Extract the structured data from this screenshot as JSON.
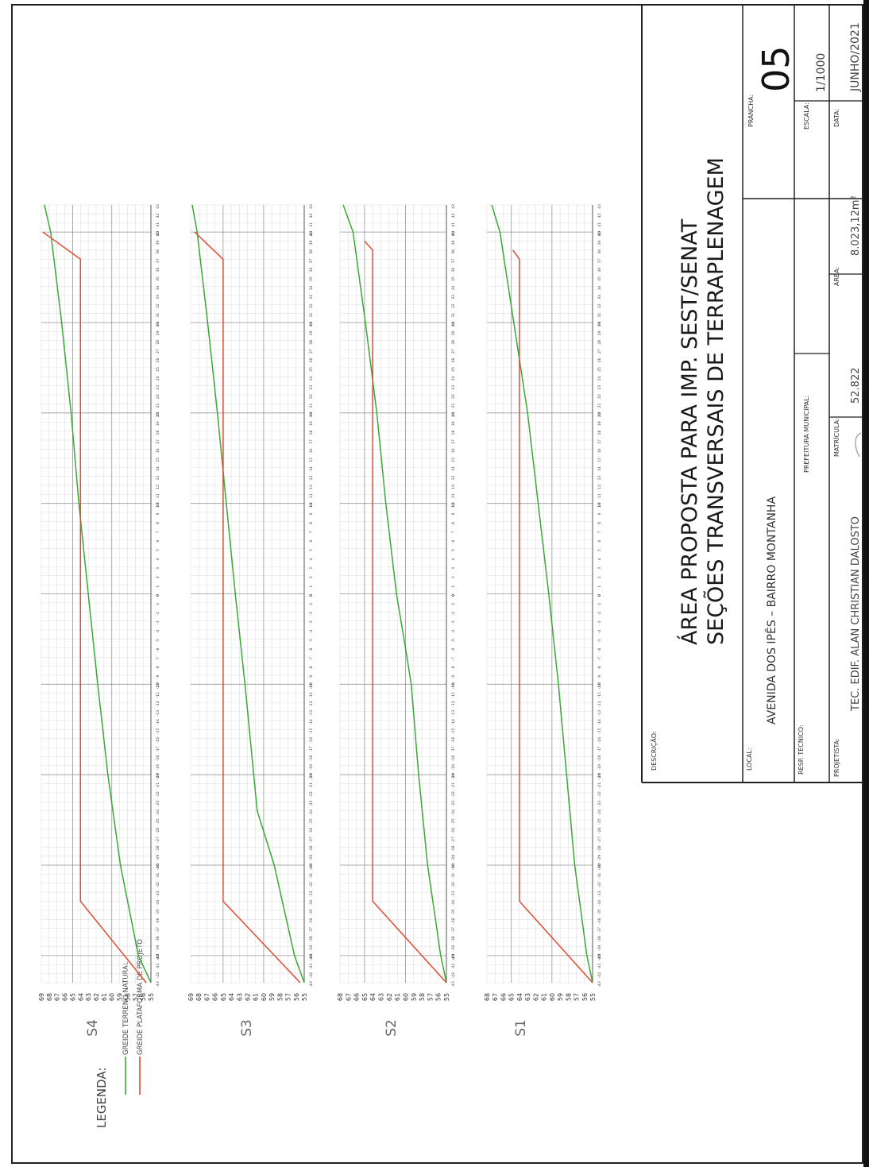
{
  "title_block": {
    "description_label": "DESCRIÇÃO:",
    "title_line1": "ÁREA PROPOSTA PARA IMP. SEST/SENAT",
    "title_line2": "SEÇÕES TRANSVERSAIS DE TERRAPLENAGEM",
    "sheet_label": "PRANCHA:",
    "sheet_value": "05",
    "scale_label": "ESCALA:",
    "scale_value": "1/1000",
    "date_label": "DATA:",
    "date_value": "JUNHO/2021",
    "location_label": "LOCAL:",
    "location_value": "AVENIDA DOS IPÊS  –  BAIRRO MONTANHA",
    "technical_label": "RESP. TÉCNICO:",
    "municipal_label": "PREFEITURA MUNICIPAL:",
    "designer_label": "PROJETISTA:",
    "designer_value": "TEC. EDIF. ALAN CHRISTIAN DALOSTO",
    "registry_label": "MATRÍCULA:",
    "registry_value": "52.822",
    "area_label": "ÁREA:",
    "area_value": "8.023,12m²"
  },
  "legend": {
    "title": "LEGENDA:",
    "items": [
      {
        "label": "GREIDE TERRENO NATURAL",
        "color": "#3aa836"
      },
      {
        "label": "GREIDE PLATAFORMA DE PROJETO",
        "color": "#e24a33"
      }
    ]
  },
  "chart_data": [
    {
      "type": "line",
      "title": "S4",
      "x": [
        -43,
        -40,
        -30,
        -20,
        -10,
        0,
        10,
        20,
        25,
        30,
        40,
        43
      ],
      "xlim": [
        -43,
        43
      ],
      "ylim": [
        55,
        69
      ],
      "y_ticks": [
        55,
        56,
        57,
        58,
        59,
        60,
        61,
        62,
        63,
        64,
        65,
        66,
        67,
        68,
        69
      ],
      "series": [
        {
          "name": "GREIDE TERRENO NATURAL",
          "color": "#3aa836",
          "points": [
            [
              -43,
              55.0
            ],
            [
              -40,
              56.6
            ],
            [
              -30,
              58.9
            ],
            [
              -20,
              60.5
            ],
            [
              -10,
              61.8
            ],
            [
              0,
              63.0
            ],
            [
              10,
              64.2
            ],
            [
              20,
              65.2
            ],
            [
              30,
              66.4
            ],
            [
              40,
              67.8
            ],
            [
              43,
              68.6
            ]
          ]
        },
        {
          "name": "GREIDE PLATAFORMA DE PROJETO",
          "color": "#e24a33",
          "points": [
            [
              -43,
              55.6
            ],
            [
              -34,
              64.0
            ],
            [
              37,
              64.0
            ],
            [
              40,
              68.8
            ]
          ]
        }
      ]
    },
    {
      "type": "line",
      "title": "S3",
      "x": [
        -43,
        -40,
        -30,
        -20,
        -10,
        0,
        10,
        20,
        25,
        30,
        40,
        43
      ],
      "xlim": [
        -43,
        43
      ],
      "ylim": [
        55,
        69
      ],
      "y_ticks": [
        55,
        56,
        57,
        58,
        59,
        60,
        61,
        62,
        63,
        64,
        65,
        66,
        67,
        68,
        69
      ],
      "series": [
        {
          "name": "GREIDE TERRENO NATURAL",
          "color": "#3aa836",
          "points": [
            [
              -43,
              55.0
            ],
            [
              -40,
              56.2
            ],
            [
              -30,
              58.7
            ],
            [
              -24,
              60.8
            ],
            [
              -10,
              62.3
            ],
            [
              0,
              63.5
            ],
            [
              10,
              64.6
            ],
            [
              20,
              65.7
            ],
            [
              30,
              66.9
            ],
            [
              40,
              68.2
            ],
            [
              43,
              68.8
            ]
          ]
        },
        {
          "name": "GREIDE PLATAFORMA DE PROJETO",
          "color": "#e24a33",
          "points": [
            [
              -43,
              55.5
            ],
            [
              -34,
              65.0
            ],
            [
              37,
              65.0
            ],
            [
              40,
              68.5
            ]
          ]
        }
      ]
    },
    {
      "type": "line",
      "title": "S2",
      "x": [
        -43,
        -40,
        -30,
        -20,
        -10,
        0,
        10,
        20,
        25,
        30,
        40,
        43
      ],
      "xlim": [
        -43,
        43
      ],
      "ylim": [
        55,
        68
      ],
      "y_ticks": [
        55,
        56,
        57,
        58,
        59,
        60,
        61,
        62,
        63,
        64,
        65,
        66,
        67,
        68
      ],
      "series": [
        {
          "name": "GREIDE TERRENO NATURAL",
          "color": "#3aa836",
          "points": [
            [
              -43,
              55.0
            ],
            [
              -40,
              55.7
            ],
            [
              -30,
              57.3
            ],
            [
              -20,
              58.4
            ],
            [
              -10,
              59.3
            ],
            [
              -6,
              60.0
            ],
            [
              0,
              61.1
            ],
            [
              10,
              62.4
            ],
            [
              20,
              63.5
            ],
            [
              30,
              64.9
            ],
            [
              40,
              66.4
            ],
            [
              43,
              67.6
            ]
          ]
        },
        {
          "name": "GREIDE PLATAFORMA DE PROJETO",
          "color": "#e24a33",
          "points": [
            [
              -43,
              55.0
            ],
            [
              -34,
              64.0
            ],
            [
              38,
              64.0
            ],
            [
              39,
              65.0
            ]
          ]
        }
      ]
    },
    {
      "type": "line",
      "title": "S1",
      "x": [
        -43,
        -40,
        -30,
        -20,
        -10,
        0,
        10,
        20,
        25,
        30,
        40,
        43
      ],
      "xlim": [
        -43,
        43
      ],
      "ylim": [
        55,
        68
      ],
      "y_ticks": [
        55,
        56,
        57,
        58,
        59,
        60,
        61,
        62,
        63,
        64,
        65,
        66,
        67,
        68
      ],
      "series": [
        {
          "name": "GREIDE TERRENO NATURAL",
          "color": "#3aa836",
          "points": [
            [
              -43,
              55.0
            ],
            [
              -40,
              55.7
            ],
            [
              -30,
              57.2
            ],
            [
              -20,
              58.2
            ],
            [
              -10,
              59.2
            ],
            [
              0,
              60.4
            ],
            [
              10,
              61.7
            ],
            [
              20,
              63.0
            ],
            [
              30,
              64.7
            ],
            [
              40,
              66.4
            ],
            [
              43,
              67.4
            ]
          ]
        },
        {
          "name": "GREIDE PLATAFORMA DE PROJETO",
          "color": "#e24a33",
          "points": [
            [
              -43,
              55.0
            ],
            [
              -34,
              64.0
            ],
            [
              37,
              64.0
            ],
            [
              38,
              64.8
            ]
          ]
        }
      ]
    }
  ]
}
